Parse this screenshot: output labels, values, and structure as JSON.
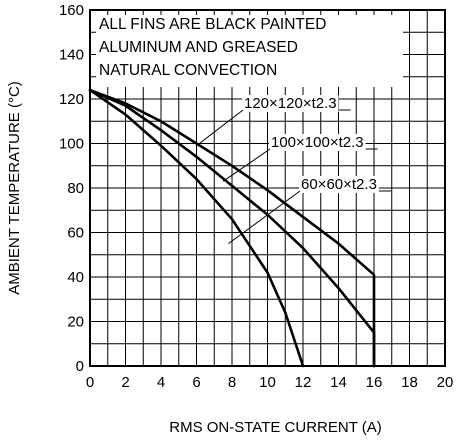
{
  "chart_data": {
    "type": "line",
    "xlabel": "RMS ON-STATE CURRENT  (A)",
    "ylabel": "AMBIENT TEMPERATURE  (°C)",
    "xlim": [
      0,
      20
    ],
    "ylim": [
      0,
      160
    ],
    "xticks": [
      0,
      2,
      4,
      6,
      8,
      10,
      12,
      14,
      16,
      18,
      20
    ],
    "yticks": [
      0,
      20,
      40,
      60,
      80,
      100,
      120,
      140,
      160
    ],
    "grid": true,
    "notes": [
      "ALL FINS ARE BLACK PAINTED",
      "ALUMINUM AND GREASED",
      "NATURAL CONVECTION"
    ],
    "series": [
      {
        "name": "120×120×t2.3",
        "x": [
          0,
          2,
          4,
          6,
          8,
          10,
          12,
          14,
          16,
          16
        ],
        "y": [
          124,
          118,
          110,
          100,
          90,
          79,
          67,
          55,
          41,
          0
        ]
      },
      {
        "name": "100×100×t2.3",
        "x": [
          0,
          2,
          4,
          6,
          8,
          10,
          12,
          14,
          16,
          16
        ],
        "y": [
          124,
          117,
          106,
          94,
          81,
          68,
          53,
          35,
          15,
          0
        ]
      },
      {
        "name": "60×60×t2.3",
        "x": [
          0,
          2,
          4,
          6,
          8,
          10,
          11,
          12
        ],
        "y": [
          124,
          113,
          99,
          84,
          66,
          42,
          24,
          0
        ]
      }
    ]
  }
}
